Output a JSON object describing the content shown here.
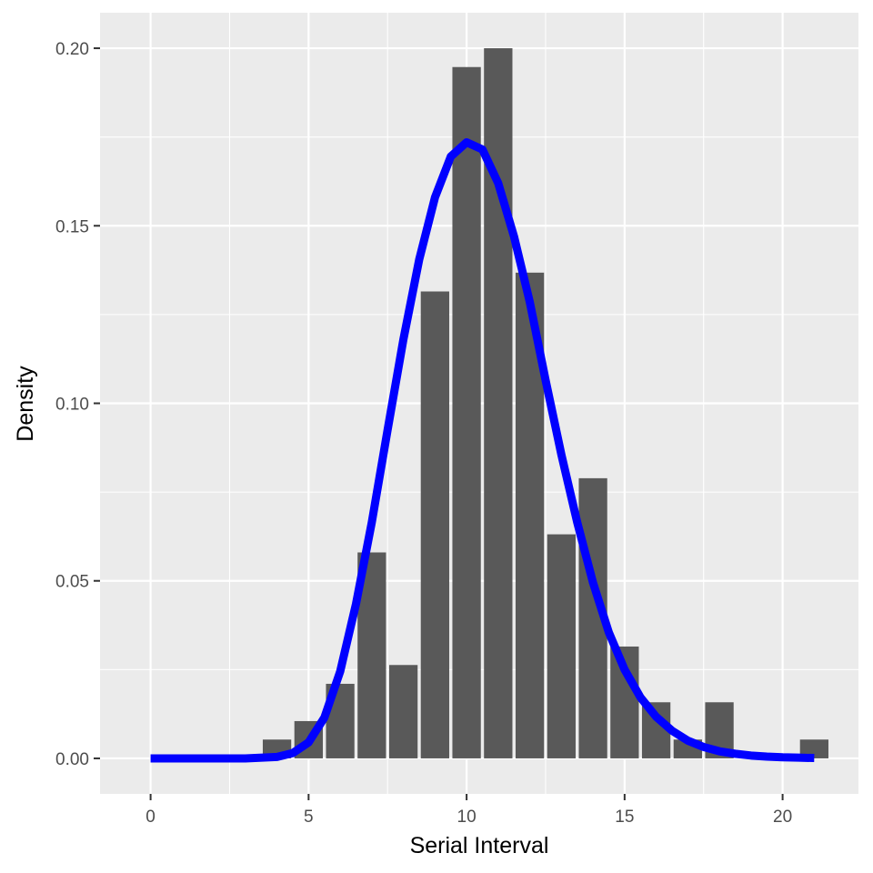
{
  "chart_data": {
    "type": "bar",
    "title": "",
    "xlabel": "Serial Interval",
    "ylabel": "Density",
    "xlim": [
      -1.6,
      22.4
    ],
    "ylim": [
      -0.01,
      0.21
    ],
    "x_ticks": [
      0,
      5,
      10,
      15,
      20
    ],
    "x_tick_labels": [
      "0",
      "5",
      "10",
      "15",
      "20"
    ],
    "y_ticks": [
      0.0,
      0.05,
      0.1,
      0.15,
      0.2
    ],
    "y_tick_labels": [
      "0.00",
      "0.05",
      "0.10",
      "0.15",
      "0.20"
    ],
    "grid": true,
    "background_color": "#ebebeb",
    "grid_color": "#ffffff",
    "bar_color": "#595959",
    "curve_color": "#0000ff",
    "histogram": {
      "bin_width": 1,
      "bin_centers": [
        4,
        5,
        6,
        7,
        8,
        9,
        10,
        11,
        12,
        13,
        14,
        15,
        16,
        17,
        18,
        19,
        20,
        21
      ],
      "densities": [
        0.0053,
        0.0105,
        0.021,
        0.058,
        0.0263,
        0.1315,
        0.1947,
        0.2,
        0.1368,
        0.0631,
        0.0789,
        0.0315,
        0.0158,
        0.0053,
        0.0158,
        0,
        0,
        0.0053
      ]
    },
    "density_curve": {
      "x": [
        0,
        1,
        2,
        3,
        4,
        4.5,
        5,
        5.5,
        6,
        6.5,
        7,
        7.5,
        8,
        8.5,
        9,
        9.5,
        10,
        10.5,
        11,
        11.5,
        12,
        12.5,
        13,
        13.5,
        14,
        14.5,
        15,
        15.5,
        16,
        16.5,
        17,
        17.5,
        18,
        18.5,
        19,
        19.5,
        20,
        20.5,
        21
      ],
      "y": [
        0,
        0,
        0,
        0,
        0.0004,
        0.0015,
        0.0045,
        0.0115,
        0.0245,
        0.0435,
        0.0665,
        0.0925,
        0.118,
        0.1405,
        0.158,
        0.1695,
        0.1735,
        0.1715,
        0.162,
        0.147,
        0.1285,
        0.1065,
        0.0855,
        0.0665,
        0.0495,
        0.0355,
        0.025,
        0.0172,
        0.0117,
        0.0078,
        0.005,
        0.0032,
        0.002,
        0.0013,
        0.0008,
        0.0005,
        0.0003,
        0.0002,
        0.0001
      ]
    }
  }
}
